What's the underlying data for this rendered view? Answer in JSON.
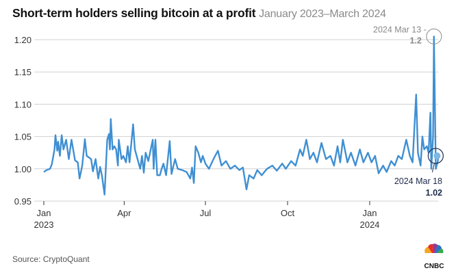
{
  "title": "Short-term holders selling bitcoin at a profit",
  "subtitle": "January 2023–March 2024",
  "source": "Source: CryptoQuant",
  "logo_text": "CNBC",
  "colors": {
    "line": "#3f8fd2",
    "grid": "#d0d0d0",
    "annotation_gray": "#8a8a8a",
    "annotation_navy": "#1c2a4a"
  },
  "chart_data": {
    "type": "line",
    "title": "Short-term holders selling bitcoin at a profit",
    "subtitle": "January 2023–March 2024",
    "xlabel": "",
    "ylabel": "",
    "ylim": [
      0.95,
      1.2
    ],
    "yticks": [
      "0.95",
      "1.00",
      "1.05",
      "1.10",
      "1.15",
      "1.20"
    ],
    "xticks": [
      {
        "date": "2023-01-01",
        "label": "Jan",
        "year": "2023"
      },
      {
        "date": "2023-04-01",
        "label": "Apr",
        "year": ""
      },
      {
        "date": "2023-07-01",
        "label": "Jul",
        "year": ""
      },
      {
        "date": "2023-10-01",
        "label": "Oct",
        "year": ""
      },
      {
        "date": "2024-01-01",
        "label": "Jan",
        "year": "2024"
      }
    ],
    "grid": "horizontal",
    "annotations": [
      {
        "date": "2024-03-13",
        "label": "2024 Mar 13 -",
        "value_label": "1.2"
      },
      {
        "date": "2024-03-18",
        "label": "2024 Mar 18",
        "value_label": "1.02"
      }
    ],
    "x": [
      "2023-01-01",
      "2023-01-04",
      "2023-01-08",
      "2023-01-10",
      "2023-01-13",
      "2023-01-14",
      "2023-01-16",
      "2023-01-17",
      "2023-01-19",
      "2023-01-21",
      "2023-01-23",
      "2023-01-26",
      "2023-01-29",
      "2023-02-01",
      "2023-02-05",
      "2023-02-08",
      "2023-02-10",
      "2023-02-13",
      "2023-02-16",
      "2023-02-18",
      "2023-02-23",
      "2023-02-25",
      "2023-02-28",
      "2023-03-03",
      "2023-03-05",
      "2023-03-07",
      "2023-03-10",
      "2023-03-13",
      "2023-03-15",
      "2023-03-16",
      "2023-03-17",
      "2023-03-19",
      "2023-03-21",
      "2023-03-23",
      "2023-03-25",
      "2023-03-26",
      "2023-03-29",
      "2023-03-31",
      "2023-04-03",
      "2023-04-05",
      "2023-04-07",
      "2023-04-11",
      "2023-04-13",
      "2023-04-17",
      "2023-04-19",
      "2023-04-21",
      "2023-04-23",
      "2023-04-25",
      "2023-04-28",
      "2023-05-03",
      "2023-05-04",
      "2023-05-06",
      "2023-05-08",
      "2023-05-11",
      "2023-05-13",
      "2023-05-15",
      "2023-05-18",
      "2023-05-22",
      "2023-05-24",
      "2023-05-28",
      "2023-05-31",
      "2023-06-05",
      "2023-06-10",
      "2023-06-14",
      "2023-06-16",
      "2023-06-18",
      "2023-06-20",
      "2023-06-23",
      "2023-06-26",
      "2023-06-28",
      "2023-07-01",
      "2023-07-05",
      "2023-07-10",
      "2023-07-15",
      "2023-07-19",
      "2023-07-24",
      "2023-07-29",
      "2023-08-03",
      "2023-08-08",
      "2023-08-12",
      "2023-08-16",
      "2023-08-19",
      "2023-08-24",
      "2023-08-28",
      "2023-09-02",
      "2023-09-08",
      "2023-09-14",
      "2023-09-19",
      "2023-09-25",
      "2023-09-29",
      "2023-10-05",
      "2023-10-10",
      "2023-10-15",
      "2023-10-18",
      "2023-10-22",
      "2023-10-26",
      "2023-10-30",
      "2023-11-03",
      "2023-11-08",
      "2023-11-13",
      "2023-11-18",
      "2023-11-22",
      "2023-11-26",
      "2023-11-29",
      "2023-12-02",
      "2023-12-07",
      "2023-12-11",
      "2023-12-16",
      "2023-12-21",
      "2023-12-25",
      "2023-12-30",
      "2024-01-03",
      "2024-01-07",
      "2024-01-11",
      "2024-01-16",
      "2024-01-20",
      "2024-01-25",
      "2024-01-29",
      "2024-02-02",
      "2024-02-06",
      "2024-02-11",
      "2024-02-15",
      "2024-02-18",
      "2024-02-22",
      "2024-02-24",
      "2024-02-27",
      "2024-02-29",
      "2024-03-02",
      "2024-03-05",
      "2024-03-07",
      "2024-03-09",
      "2024-03-10",
      "2024-03-12",
      "2024-03-13",
      "2024-03-15",
      "2024-03-17",
      "2024-03-18"
    ],
    "y": [
      0.995,
      0.998,
      1.0,
      1.007,
      1.03,
      1.052,
      1.028,
      1.042,
      1.02,
      1.052,
      1.03,
      1.045,
      1.015,
      1.045,
      1.013,
      1.01,
      0.985,
      1.005,
      1.046,
      1.02,
      1.015,
      0.996,
      1.015,
      0.985,
      1.003,
      0.99,
      0.96,
      1.045,
      1.054,
      1.03,
      1.077,
      1.03,
      1.035,
      1.03,
      1.005,
      1.045,
      1.015,
      1.02,
      1.01,
      1.035,
      1.01,
      1.069,
      1.03,
      1.01,
      1.0,
      1.02,
      0.994,
      1.025,
      1.012,
      1.045,
      1.0,
      1.045,
      0.99,
      0.99,
      1.0,
      1.008,
      0.99,
      1.043,
      0.992,
      1.015,
      1.0,
      0.998,
      0.995,
      0.985,
      1.002,
      0.978,
      1.035,
      1.025,
      1.01,
      1.02,
      1.008,
      1.0,
      1.015,
      1.028,
      1.005,
      1.012,
      1.0,
      1.005,
      0.998,
      1.002,
      0.968,
      0.99,
      0.985,
      0.998,
      0.99,
      1.0,
      1.005,
      0.997,
      1.008,
      1.0,
      1.012,
      1.005,
      1.03,
      1.02,
      1.045,
      1.015,
      1.025,
      1.01,
      1.04,
      1.015,
      1.02,
      1.005,
      1.035,
      1.01,
      1.045,
      1.01,
      1.025,
      1.005,
      1.03,
      1.01,
      1.025,
      1.01,
      1.02,
      0.993,
      1.005,
      0.995,
      1.012,
      1.005,
      1.02,
      1.015,
      1.045,
      1.02,
      1.01,
      1.115,
      1.025,
      1.005,
      1.05,
      1.03,
      1.035,
      1.025,
      1.087,
      1.0,
      1.05,
      1.205,
      1.0,
      1.01,
      1.02
    ]
  }
}
